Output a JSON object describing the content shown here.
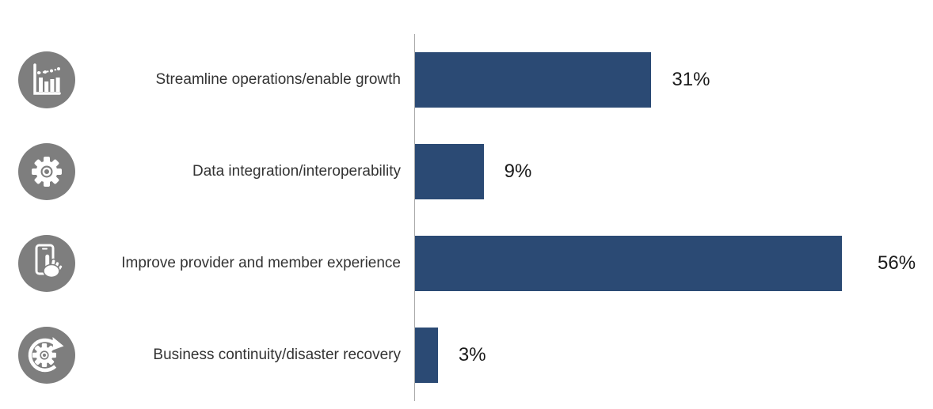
{
  "chart_data": {
    "type": "bar",
    "orientation": "horizontal",
    "title": "",
    "categories": [
      "Streamline operations/enable growth",
      "Data integration/interoperability",
      "Improve provider and member experience",
      "Business continuity/disaster recovery"
    ],
    "values": [
      31,
      9,
      56,
      3
    ],
    "unit": "%",
    "rows": [
      {
        "label": "Streamline operations/enable growth",
        "value": 31,
        "value_label": "31%",
        "icon": "bar-chart-trend-icon"
      },
      {
        "label": "Data integration/interoperability",
        "value": 9,
        "value_label": "9%",
        "icon": "gear-icon"
      },
      {
        "label": "Improve provider and member experience",
        "value": 56,
        "value_label": "56%",
        "icon": "touchscreen-hand-icon"
      },
      {
        "label": "Business continuity/disaster recovery",
        "value": 3,
        "value_label": "3%",
        "icon": "recovery-cycle-gear-icon"
      }
    ],
    "layout_hints": {
      "axis_max_percent": 68,
      "gridlines": false,
      "legend": false,
      "value_labels_position": "right-of-bar",
      "category_labels_position": "left-of-axis"
    },
    "colors": {
      "bar": "#2B4A74",
      "icon_circle": "#7E7E7E",
      "icon_glyph": "#FFFFFF",
      "axis_line": "#A9A9A9",
      "category_label": "#333333",
      "value_label": "#1A1A1A",
      "background": "#FFFFFF"
    }
  }
}
